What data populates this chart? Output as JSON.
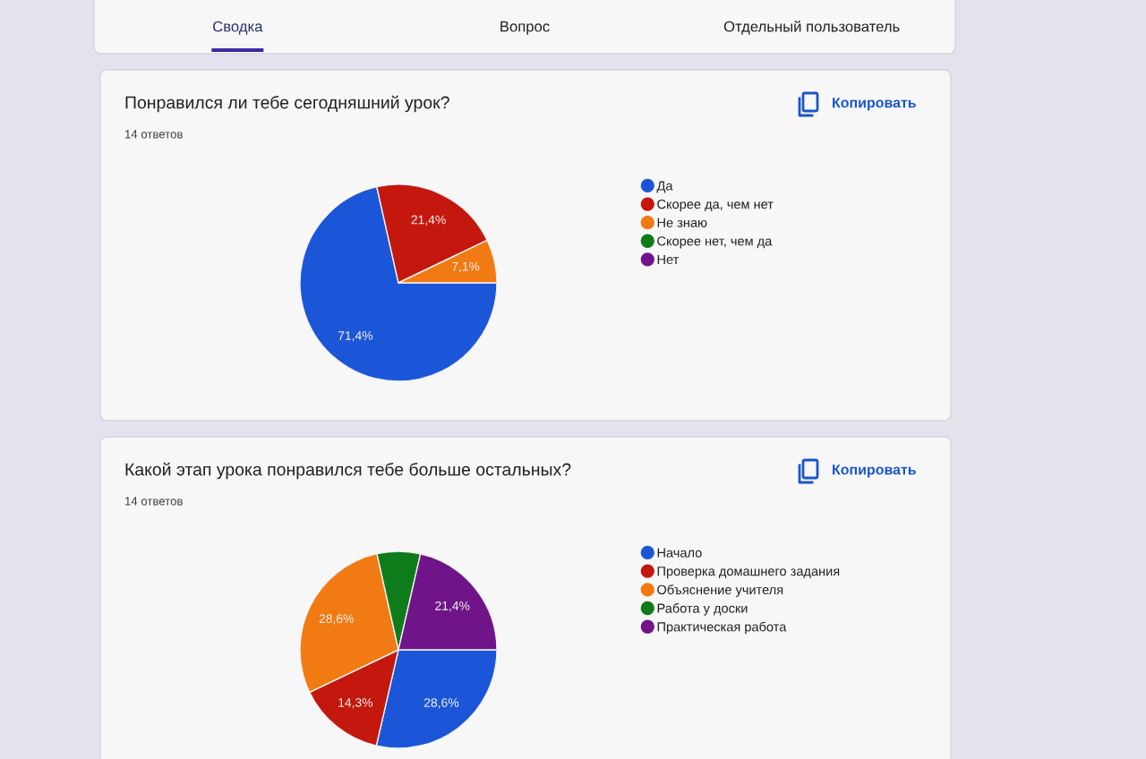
{
  "chart_data": [
    {
      "type": "pie",
      "title": "Понравился ли тебе сегодняшний урок?",
      "subtitle": "14 ответов",
      "categories": [
        "Да",
        "Скорее да, чем нет",
        "Не знаю",
        "Скорее нет, чем да",
        "Нет"
      ],
      "values": [
        71.4,
        21.4,
        7.1,
        0,
        0
      ],
      "colors": [
        "#1c56d8",
        "#c4180e",
        "#f27a12",
        "#0e7c1a",
        "#701489"
      ],
      "value_labels": [
        "71,4%",
        "21,4%",
        "7,1%",
        null,
        null
      ],
      "legend": "right",
      "annotations": [
        "Сводка",
        "Вопрос",
        "Отдельный пользователь",
        "Копировать"
      ]
    },
    {
      "type": "pie",
      "title": "Какой этап урока понравился тебе больше остальных?",
      "subtitle": "14 ответов",
      "categories": [
        "Начало",
        "Проверка домашнего задания",
        "Объяснение учителя",
        "Работа у доски",
        "Практическая работа"
      ],
      "values": [
        28.6,
        14.3,
        28.6,
        7.1,
        21.4
      ],
      "colors": [
        "#1c56d8",
        "#c4180e",
        "#f27a12",
        "#0e7c1a",
        "#701489"
      ],
      "value_labels": [
        "28,6%",
        "14,3%",
        "28,6%",
        null,
        "21,4%"
      ],
      "legend": "right",
      "annotations": [
        "Копировать"
      ]
    }
  ]
}
